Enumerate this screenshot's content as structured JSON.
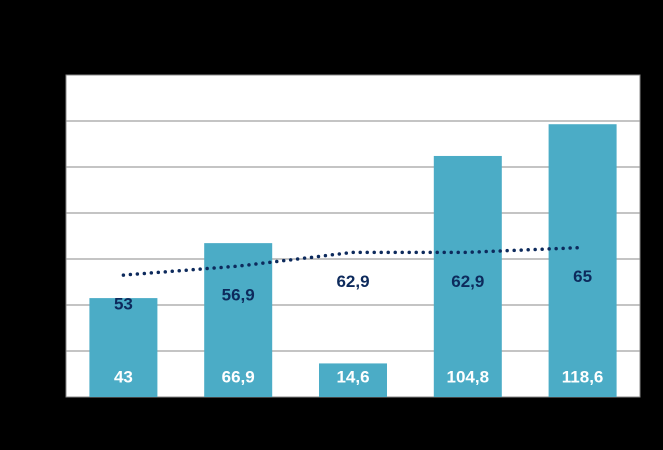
{
  "chart_data": {
    "type": "bar",
    "categories": [
      null,
      null,
      null,
      null,
      null
    ],
    "series": [
      {
        "type": "bar",
        "color": "#4bacc6",
        "values": [
          43,
          66.9,
          14.6,
          104.8,
          118.6
        ],
        "value_labels": [
          "43",
          "66,9",
          "14,6",
          "104,8",
          "118,6"
        ],
        "label_color": "#ffffff"
      },
      {
        "type": "line",
        "color": "#0d2a5c",
        "values": [
          53,
          56.9,
          62.9,
          62.9,
          65
        ],
        "value_labels": [
          "53",
          "56,9",
          "62,9",
          "62,9",
          "65"
        ],
        "label_color": "#0d2a5c"
      }
    ],
    "ylim": [
      0,
      140
    ],
    "yticks": [
      0,
      20,
      40,
      60,
      80,
      100,
      120,
      140
    ],
    "grid": true
  }
}
